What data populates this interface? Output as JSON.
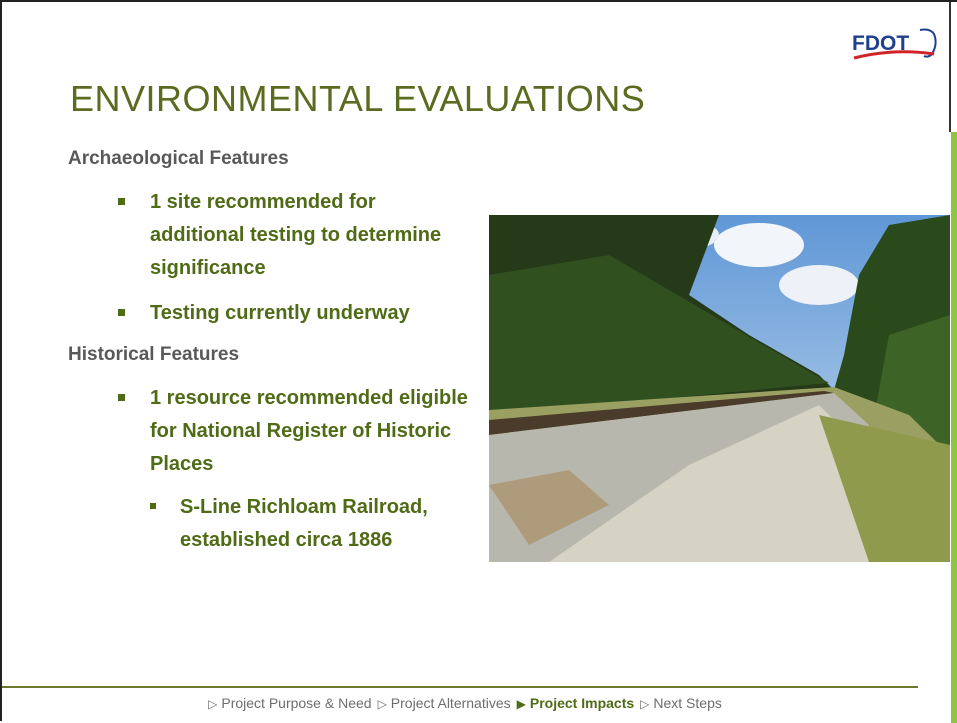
{
  "logo": "FDOT",
  "title": "ENVIRONMENTAL EVALUATIONS",
  "sections": [
    {
      "heading": "Archaeological Features",
      "items": [
        {
          "text": "1 site recommended for additional testing to determine significance"
        },
        {
          "text": "Testing currently underway"
        }
      ]
    },
    {
      "heading": "Historical Features",
      "items": [
        {
          "text": "1 resource recommended eligible for National Register of Historic Places",
          "subitems": [
            "S-Line Richloam Railroad, established circa 1886"
          ]
        }
      ]
    }
  ],
  "footer": {
    "items": [
      "Project Purpose & Need",
      "Project Alternatives",
      "Project Impacts",
      "Next Steps"
    ],
    "active_index": 2
  }
}
